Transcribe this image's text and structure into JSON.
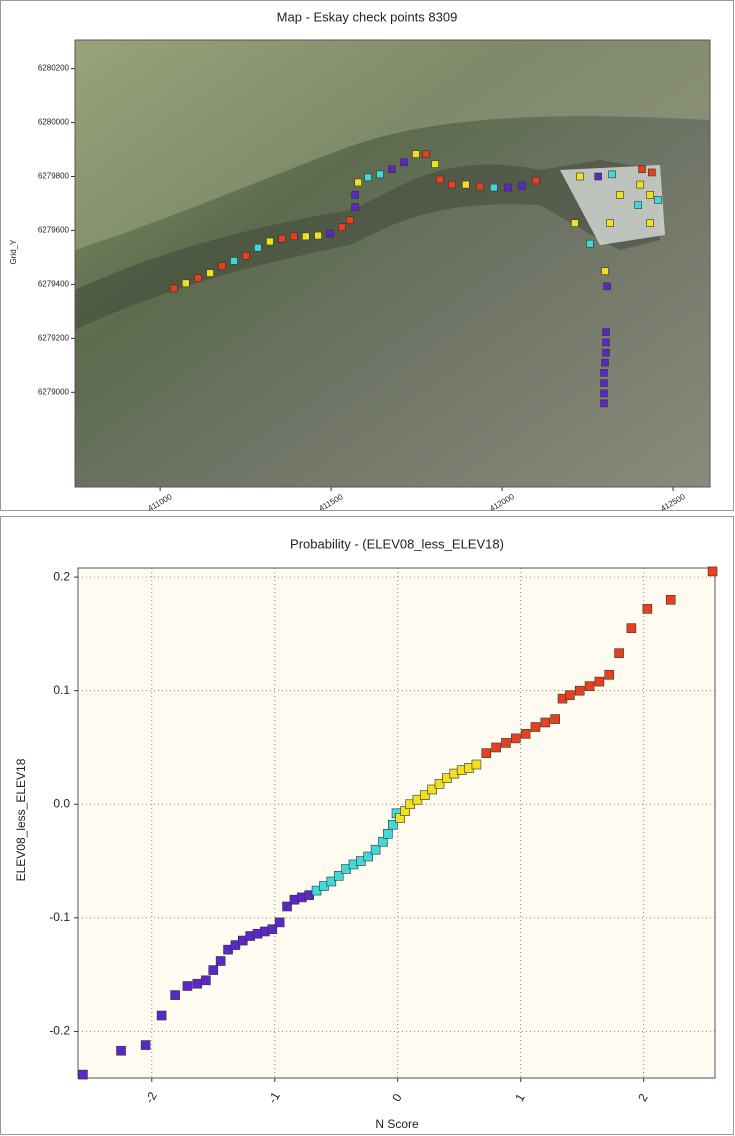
{
  "chart_data": [
    {
      "type": "scatter",
      "title": "Map - Eskay check points 8309",
      "ylabel": "Grid_Y",
      "xlim": [
        410751,
        412608
      ],
      "ylim": [
        6278649,
        6280306
      ],
      "xticks": [
        411000,
        411500,
        412000,
        412500
      ],
      "yticks": [
        6279000,
        6279200,
        6279400,
        6279600,
        6279800,
        6280000,
        6280200
      ],
      "grid": false,
      "series": [
        {
          "color": "#e8401c",
          "x": [
            411040,
            411111,
            411181,
            411251,
            411356,
            411391,
            411532,
            411555,
            411777,
            411818,
            411853,
            411935,
            412099,
            412409,
            412438
          ],
          "y": [
            6279385,
            6279423,
            6279468,
            6279506,
            6279570,
            6279578,
            6279612,
            6279638,
            6279883,
            6279789,
            6279770,
            6279763,
            6279785,
            6279827,
            6279815
          ]
        },
        {
          "color": "#f0e020",
          "x": [
            411075,
            411146,
            411321,
            411426,
            411462,
            411579,
            411748,
            411804,
            411894,
            412228,
            412404,
            412433,
            412345,
            412213,
            412316,
            412433,
            412301
          ],
          "y": [
            6279404,
            6279442,
            6279559,
            6279578,
            6279581,
            6279778,
            6279883,
            6279846,
            6279770,
            6279800,
            6279770,
            6279732,
            6279732,
            6279627,
            6279627,
            6279627,
            6279449
          ]
        },
        {
          "color": "#40d8d8",
          "x": [
            411216,
            411286,
            411608,
            411643,
            411976,
            412322,
            412398,
            412456,
            412257
          ],
          "y": [
            6279487,
            6279536,
            6279797,
            6279808,
            6279759,
            6279808,
            6279694,
            6279713,
            6279551
          ]
        },
        {
          "color": "#5a28c8",
          "x": [
            411497,
            411570,
            411570,
            411678,
            411713,
            412017,
            412058,
            412281,
            412307,
            412304,
            412304,
            412304,
            412301,
            412298,
            412298,
            412298,
            412298
          ],
          "y": [
            6279589,
            6279687,
            6279732,
            6279827,
            6279853,
            6279759,
            6279766,
            6279800,
            6279393,
            6279223,
            6279185,
            6279147,
            6279110,
            6279072,
            6279034,
            6278996,
            6278959
          ]
        }
      ]
    },
    {
      "type": "scatter",
      "title": "Probability - (ELEV08_less_ELEV18)",
      "xlabel": "N Score",
      "ylabel": "ELEV08_less_ELEV18",
      "xlim": [
        -2.6,
        2.58
      ],
      "ylim": [
        -0.241,
        0.208
      ],
      "xticks": [
        -2,
        -1,
        0,
        1,
        2
      ],
      "yticks": [
        -0.2,
        -0.1,
        {
          "value": 0,
          "label": "0.0"
        },
        0.1,
        0.2
      ],
      "grid": true,
      "series": [
        {
          "color": "#5a28c8",
          "x": [
            -2.56,
            -2.25,
            -2.05,
            -1.92,
            -1.81,
            -1.71,
            -1.63,
            -1.56,
            -1.5,
            -1.44,
            -1.38,
            -1.32,
            -1.26,
            -1.2,
            -1.14,
            -1.08,
            -1.02,
            -0.96,
            -0.9,
            -0.84,
            -0.78,
            -0.72
          ],
          "y": [
            -0.238,
            -0.217,
            -0.212,
            -0.186,
            -0.168,
            -0.16,
            -0.158,
            -0.155,
            -0.146,
            -0.138,
            -0.128,
            -0.124,
            -0.12,
            -0.116,
            -0.114,
            -0.112,
            -0.11,
            -0.104,
            -0.09,
            -0.084,
            -0.082,
            -0.08
          ]
        },
        {
          "color": "#40d8d8",
          "x": [
            -0.66,
            -0.6,
            -0.54,
            -0.48,
            -0.42,
            -0.36,
            -0.3,
            -0.24,
            -0.18,
            -0.12,
            -0.08,
            -0.04,
            -0.01
          ],
          "y": [
            -0.076,
            -0.072,
            -0.068,
            -0.063,
            -0.057,
            -0.053,
            -0.05,
            -0.046,
            -0.04,
            -0.033,
            -0.026,
            -0.018,
            -0.008
          ]
        },
        {
          "color": "#f0e020",
          "x": [
            0.02,
            0.06,
            0.1,
            0.16,
            0.22,
            0.28,
            0.34,
            0.4,
            0.46,
            0.52,
            0.58,
            0.64
          ],
          "y": [
            -0.012,
            -0.006,
            0,
            0.004,
            0.008,
            0.013,
            0.018,
            0.023,
            0.027,
            0.03,
            0.032,
            0.035
          ]
        },
        {
          "color": "#e8401c",
          "x": [
            0.72,
            0.8,
            0.88,
            0.96,
            1.04,
            1.12,
            1.2,
            1.28,
            1.34,
            1.4,
            1.48,
            1.56,
            1.64,
            1.72,
            1.8,
            1.9,
            2.03,
            2.22,
            2.56
          ],
          "y": [
            0.045,
            0.05,
            0.054,
            0.058,
            0.062,
            0.068,
            0.072,
            0.075,
            0.093,
            0.096,
            0.1,
            0.104,
            0.108,
            0.114,
            0.133,
            0.155,
            0.172,
            0.18,
            0.205
          ]
        }
      ]
    }
  ]
}
